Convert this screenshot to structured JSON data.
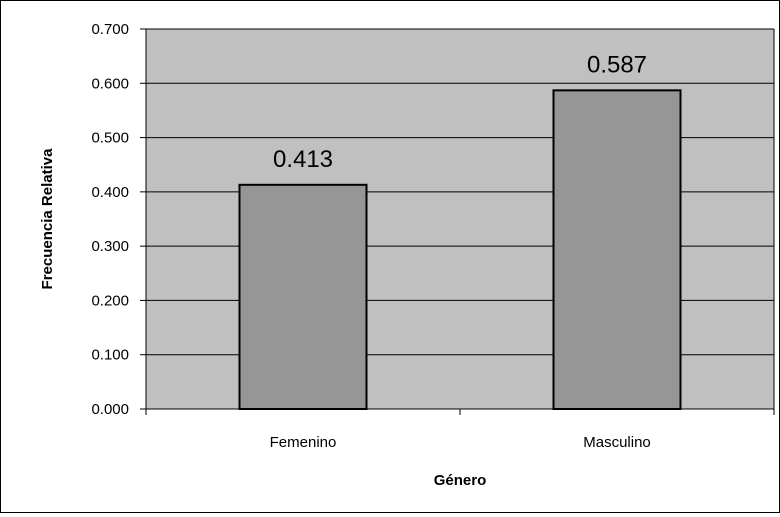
{
  "chart_data": {
    "type": "bar",
    "title": "",
    "xlabel": "Género",
    "ylabel": "Frecuencia Relativa",
    "categories": [
      "Femenino",
      "Masculino"
    ],
    "values": [
      0.413,
      0.587
    ],
    "value_labels": [
      "0.413",
      "0.587"
    ],
    "ylim": [
      0,
      0.7
    ],
    "yticks": [
      0,
      0.1,
      0.2,
      0.3,
      0.4,
      0.5,
      0.6,
      0.7
    ],
    "ytick_labels": [
      "0.000",
      "0.100",
      "0.200",
      "0.300",
      "0.400",
      "0.500",
      "0.600",
      "0.700"
    ],
    "grid": true,
    "legend": "none",
    "colors": {
      "plot_background": "#c0c0c0",
      "bar_fill": "#969696",
      "bar_stroke": "#000000",
      "gridline": "#000000"
    }
  }
}
